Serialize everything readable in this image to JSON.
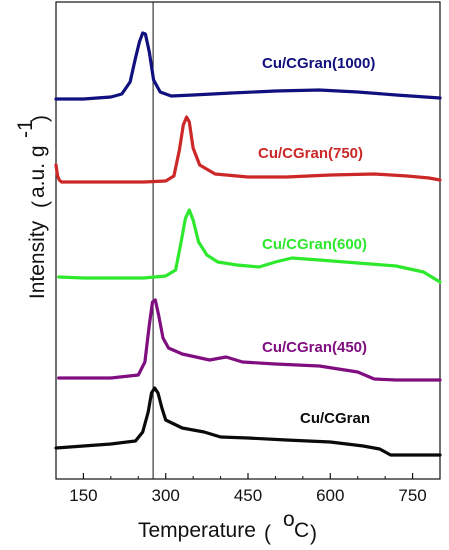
{
  "chart_data": {
    "type": "line",
    "title": "",
    "xlabel": "Temperature (°C)",
    "xlabel_parts": {
      "main": "Temperature",
      "unit": "°C"
    },
    "ylabel": "Intensity (a.u. g-1)",
    "ylabel_parts": {
      "main": "Intensity",
      "unit_base": "a.u. g",
      "unit_exp": "-1"
    },
    "xlim": [
      100,
      800
    ],
    "xticks": [
      150,
      300,
      450,
      600,
      750
    ],
    "yticks_shown": false,
    "grid": false,
    "reference_line_x": 277,
    "legend": "labels placed next to each curve",
    "series": [
      {
        "name": "Cu/CGran(1000)",
        "color": "#10107e",
        "x": [
          100,
          150,
          200,
          220,
          235,
          245,
          252,
          258,
          263,
          270,
          278,
          290,
          310,
          350,
          420,
          500,
          580,
          650,
          720,
          800
        ],
        "values": [
          99,
          99,
          97,
          94,
          82,
          58,
          42,
          33,
          34,
          52,
          80,
          92,
          96,
          95,
          93,
          91,
          90,
          92,
          95,
          98
        ]
      },
      {
        "name": "Cu/CGran(750)",
        "color": "#cc2828",
        "x": [
          100,
          103,
          106,
          110,
          150,
          200,
          260,
          300,
          315,
          325,
          332,
          338,
          343,
          350,
          362,
          390,
          450,
          520,
          600,
          680,
          740,
          780,
          800
        ],
        "values": [
          165,
          176,
          180,
          182,
          182,
          182,
          182,
          181,
          176,
          150,
          125,
          117,
          122,
          148,
          165,
          174,
          177,
          177,
          175,
          174,
          176,
          178,
          180
        ]
      },
      {
        "name": "Cu/CGran(600)",
        "color": "#2ee82e",
        "x": [
          105,
          150,
          200,
          260,
          300,
          318,
          328,
          336,
          343,
          350,
          360,
          375,
          395,
          430,
          470,
          500,
          530,
          580,
          650,
          720,
          770,
          800
        ],
        "values": [
          277,
          278,
          278,
          278,
          276,
          270,
          242,
          218,
          210,
          220,
          242,
          255,
          262,
          265,
          267,
          262,
          258,
          260,
          263,
          266,
          272,
          282
        ]
      },
      {
        "name": "Cu/CGran(450)",
        "color": "#800e80",
        "x": [
          105,
          150,
          200,
          250,
          262,
          270,
          276,
          281,
          287,
          295,
          305,
          330,
          380,
          410,
          440,
          500,
          580,
          650,
          680,
          720,
          800
        ],
        "values": [
          378,
          378,
          378,
          375,
          362,
          325,
          302,
          300,
          315,
          338,
          348,
          354,
          360,
          357,
          362,
          364,
          366,
          372,
          379,
          380,
          380
        ]
      },
      {
        "name": "Cu/CGran",
        "color": "#0a0a0a",
        "x": [
          55,
          100,
          150,
          200,
          245,
          258,
          268,
          274,
          280,
          286,
          293,
          300,
          330,
          370,
          400,
          450,
          520,
          600,
          660,
          690,
          710,
          800
        ],
        "values": [
          448,
          448,
          446,
          444,
          441,
          432,
          412,
          393,
          388,
          393,
          408,
          420,
          428,
          432,
          437,
          438,
          440,
          442,
          446,
          449,
          455,
          455
        ]
      }
    ],
    "y_pixel_note": "values are vertical offsets in image-space units (no printed y scale)"
  },
  "labels": [
    {
      "text": "Cu/CGran(1000)",
      "color": "#10107e"
    },
    {
      "text": "Cu/CGran(750)",
      "color": "#cc2828"
    },
    {
      "text": "Cu/CGran(600)",
      "color": "#2ee82e"
    },
    {
      "text": "Cu/CGran(450)",
      "color": "#800e80"
    },
    {
      "text": "Cu/CGran",
      "color": "#0a0a0a"
    }
  ]
}
